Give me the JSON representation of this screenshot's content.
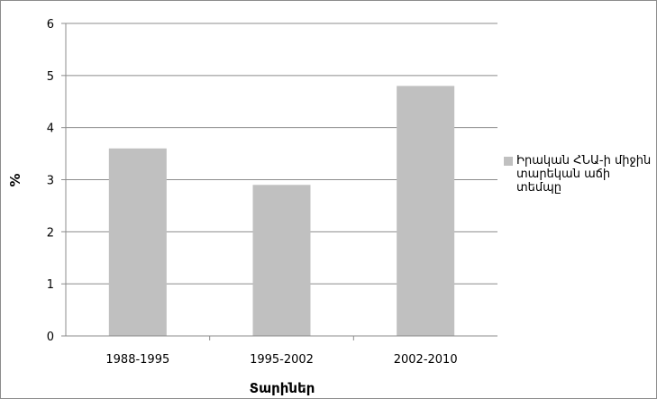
{
  "chart_data": {
    "type": "bar",
    "categories": [
      "1988-1995",
      "1995-2002",
      "2002-2010"
    ],
    "series": [
      {
        "name": "Իրական ՀՆԱ-ի միջին տարեկան աճի տեմպը",
        "values": [
          3.6,
          2.9,
          4.8
        ],
        "color": "#c0c0c0"
      }
    ],
    "xlabel": "Տարիներ",
    "ylabel": "%",
    "ylim": [
      0,
      6
    ],
    "yticks": [
      "0",
      "1",
      "2",
      "3",
      "4",
      "5",
      "6"
    ],
    "grid": true,
    "legend_position": "right"
  }
}
